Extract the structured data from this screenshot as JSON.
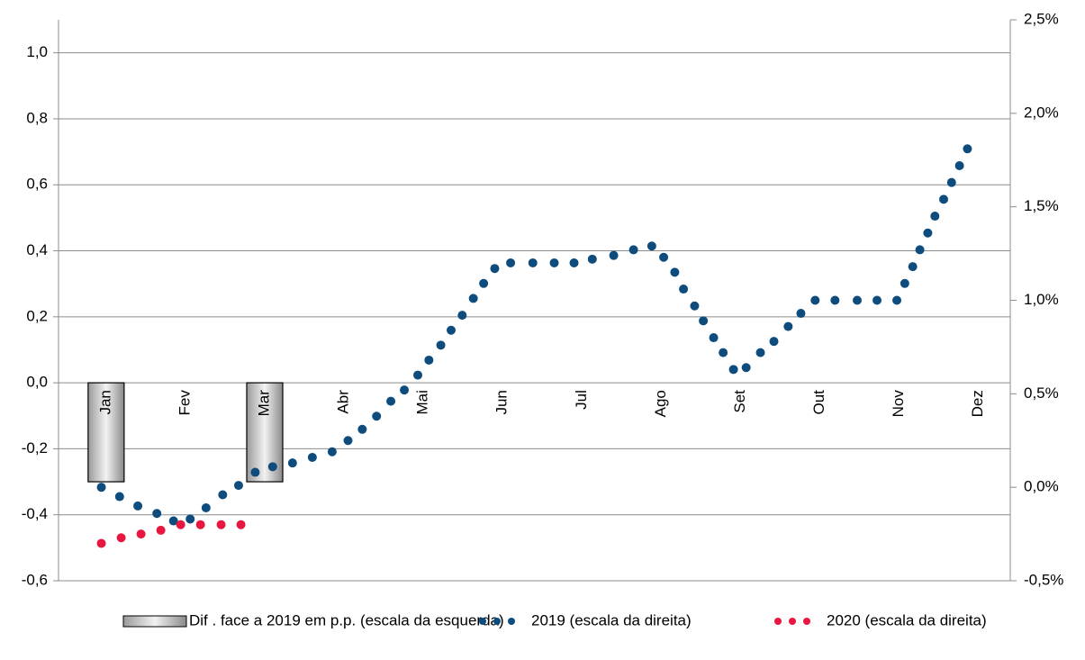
{
  "chart_data": {
    "type": "combo",
    "categories": [
      "Jan",
      "Fev",
      "Mar",
      "Abr",
      "Mai",
      "Jun",
      "Jul",
      "Ago",
      "Set",
      "Out",
      "Nov",
      "Dez"
    ],
    "xlim": [
      0.4,
      12.4
    ],
    "ylim": [
      -0.6,
      1.1
    ],
    "yticks": [
      {
        "value": -0.6,
        "label": "-0,6"
      },
      {
        "value": -0.4,
        "label": "-0,4"
      },
      {
        "value": -0.2,
        "label": "-0,2"
      },
      {
        "value": 0,
        "label": "0,0"
      },
      {
        "value": 0.2,
        "label": "0,2"
      },
      {
        "value": 0.4,
        "label": "0,4"
      },
      {
        "value": 0.6,
        "label": "0,6"
      },
      {
        "value": 0.8,
        "label": "0,8"
      },
      {
        "value": 1.0,
        "label": "1,0"
      }
    ],
    "y2lim": [
      -0.5,
      2.5
    ],
    "y2ticks": [
      {
        "value": -0.5,
        "label": "-0,5%"
      },
      {
        "value": 0,
        "label": "0,0%"
      },
      {
        "value": 0.5,
        "label": "0,5%"
      },
      {
        "value": 1.0,
        "label": "1,0%"
      },
      {
        "value": 1.5,
        "label": "1,5%"
      },
      {
        "value": 2.0,
        "label": "2,0%"
      },
      {
        "value": 2.5,
        "label": "2,5%"
      }
    ],
    "grid": true,
    "series": [
      {
        "name": "Dif . face a 2019 em p.p. (escala da esquerda)",
        "type": "bar",
        "color": "#c8c8c8",
        "values": [
          -0.3,
          null,
          -0.3,
          null,
          null,
          null,
          null,
          null,
          null,
          null,
          null,
          null
        ]
      },
      {
        "name": "2019 (escala da direita)",
        "type": "scatter",
        "axis": "y2",
        "color": "#0e4c7e",
        "x": [
          0.94,
          1.17,
          1.4,
          1.64,
          1.85,
          2.06,
          2.26,
          2.47,
          2.67,
          2.88,
          3.1,
          3.35,
          3.6,
          3.85,
          4.05,
          4.23,
          4.41,
          4.59,
          4.76,
          4.93,
          5.07,
          5.22,
          5.35,
          5.49,
          5.63,
          5.76,
          5.9,
          6.1,
          6.38,
          6.65,
          6.9,
          7.13,
          7.4,
          7.65,
          7.88,
          8.03,
          8.17,
          8.28,
          8.42,
          8.53,
          8.66,
          8.78,
          8.91,
          9.07,
          9.25,
          9.42,
          9.6,
          9.76,
          9.94,
          10.19,
          10.47,
          10.72,
          10.97,
          11.07,
          11.17,
          11.26,
          11.36,
          11.45,
          11.56,
          11.66,
          11.76,
          11.86
        ],
        "values": [
          0.0,
          -0.05,
          -0.1,
          -0.14,
          -0.18,
          -0.17,
          -0.11,
          -0.04,
          0.01,
          0.08,
          0.11,
          0.13,
          0.16,
          0.19,
          0.25,
          0.31,
          0.38,
          0.46,
          0.52,
          0.6,
          0.68,
          0.76,
          0.84,
          0.92,
          1.01,
          1.09,
          1.17,
          1.2,
          1.2,
          1.2,
          1.2,
          1.22,
          1.24,
          1.27,
          1.29,
          1.23,
          1.15,
          1.06,
          0.97,
          0.89,
          0.8,
          0.72,
          0.63,
          0.64,
          0.72,
          0.78,
          0.86,
          0.93,
          1.0,
          1.0,
          1.0,
          1.0,
          1.0,
          1.09,
          1.18,
          1.27,
          1.36,
          1.45,
          1.54,
          1.63,
          1.72,
          1.81
        ]
      },
      {
        "name": "2020 (escala da direita)",
        "type": "scatter",
        "axis": "y2",
        "color": "#e8173f",
        "x": [
          0.94,
          1.19,
          1.44,
          1.69,
          1.94,
          2.19,
          2.45,
          2.7
        ],
        "values": [
          -0.3,
          -0.27,
          -0.25,
          -0.23,
          -0.2,
          -0.2,
          -0.2,
          -0.2
        ]
      }
    ]
  }
}
